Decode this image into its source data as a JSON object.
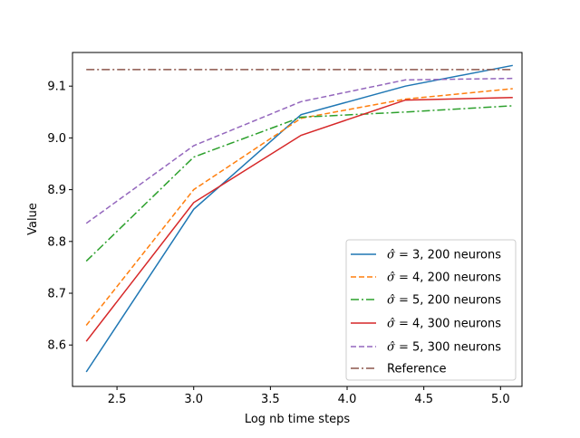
{
  "chart_data": {
    "type": "line",
    "title": "",
    "xlabel": "Log nb time  steps",
    "ylabel": "Value",
    "xlim": [
      2.21,
      5.14
    ],
    "ylim": [
      8.52,
      9.165
    ],
    "xticks": [
      "2.5",
      "3.0",
      "3.5",
      "4.0",
      "4.5",
      "5.0"
    ],
    "yticks": [
      "8.6",
      "8.7",
      "8.8",
      "8.9",
      "9.0",
      "9.1"
    ],
    "grid": false,
    "legend_position": "lower-right",
    "series": [
      {
        "name_prefix": "σ̂ = ",
        "name_suffix": " 3, 200 neurons",
        "color": "#1f77b4",
        "linestyle": "solid",
        "x": [
          2.3,
          3.0,
          3.7,
          4.38,
          5.08
        ],
        "y": [
          8.548,
          8.862,
          9.045,
          9.1,
          9.14
        ]
      },
      {
        "name_prefix": "σ̂ = ",
        "name_suffix": " 4, 200 neurons",
        "color": "#ff7f0e",
        "linestyle": "dashed",
        "x": [
          2.3,
          3.0,
          3.7,
          4.38,
          5.08
        ],
        "y": [
          8.638,
          8.9,
          9.038,
          9.075,
          9.095
        ]
      },
      {
        "name_prefix": "σ̂ = ",
        "name_suffix": " 5, 200 neurons",
        "color": "#2ca02c",
        "linestyle": "dashdot",
        "x": [
          2.3,
          3.0,
          3.7,
          4.38,
          5.08
        ],
        "y": [
          8.762,
          8.963,
          9.04,
          9.05,
          9.062
        ]
      },
      {
        "name_prefix": "σ̂ = ",
        "name_suffix": " 4, 300 neurons",
        "color": "#d62728",
        "linestyle": "solid",
        "x": [
          2.3,
          3.0,
          3.7,
          4.38,
          5.08
        ],
        "y": [
          8.607,
          8.875,
          9.005,
          9.073,
          9.078
        ]
      },
      {
        "name_prefix": "σ̂ = ",
        "name_suffix": " 5, 300 neurons",
        "color": "#9467bd",
        "linestyle": "dashed",
        "x": [
          2.3,
          3.0,
          3.7,
          4.38,
          5.08
        ],
        "y": [
          8.835,
          8.985,
          9.07,
          9.112,
          9.115
        ]
      },
      {
        "name": "Reference",
        "color": "#8c564b",
        "linestyle": "dashdot",
        "x": [
          2.3,
          5.08
        ],
        "y": [
          9.132,
          9.132
        ]
      }
    ]
  }
}
